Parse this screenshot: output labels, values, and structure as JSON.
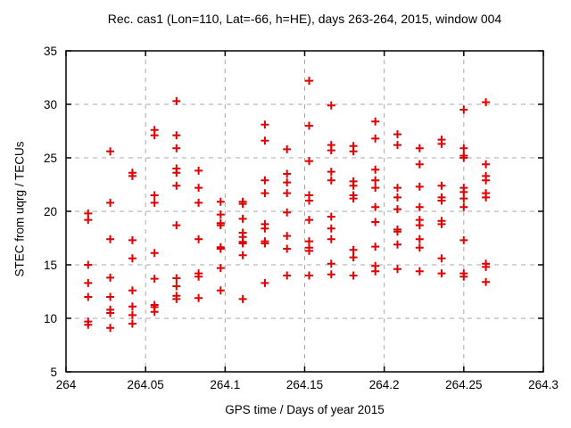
{
  "chart_data": {
    "type": "scatter",
    "title": "Rec. cas1 (Lon=110, Lat=-66, h=HE), days 263-264, 2015, window 004",
    "xlabel": "GPS time / Days of year 2015",
    "ylabel": "STEC from uqrg / TECUs",
    "xlim": [
      264,
      264.3
    ],
    "ylim": [
      5,
      35
    ],
    "xticks": {
      "values": [
        264,
        264.05,
        264.1,
        264.15,
        264.2,
        264.25,
        264.3
      ],
      "labels": [
        "264",
        "264.05",
        "264.1",
        "264.15",
        "264.2",
        "264.25",
        "264.3"
      ]
    },
    "yticks": {
      "values": [
        5,
        10,
        15,
        20,
        25,
        30,
        35
      ],
      "labels": [
        "5",
        "10",
        "15",
        "20",
        "25",
        "30",
        "35"
      ]
    },
    "grid": true,
    "grid_color": "#a8a8a8",
    "legend": "none",
    "marker": {
      "shape": "plus",
      "color": "#e00000",
      "size": 9
    },
    "series": [
      {
        "name": "STEC",
        "points": [
          [
            264.0139,
            19.8
          ],
          [
            264.0139,
            19.2
          ],
          [
            264.0139,
            15.0
          ],
          [
            264.0139,
            13.3
          ],
          [
            264.0139,
            12.0
          ],
          [
            264.0139,
            9.7
          ],
          [
            264.0139,
            9.4
          ],
          [
            264.0278,
            25.6
          ],
          [
            264.0278,
            20.8
          ],
          [
            264.0278,
            17.4
          ],
          [
            264.0278,
            13.8
          ],
          [
            264.0278,
            12.0
          ],
          [
            264.0278,
            10.8
          ],
          [
            264.0278,
            10.5
          ],
          [
            264.0278,
            9.1
          ],
          [
            264.0417,
            23.6
          ],
          [
            264.0417,
            23.3
          ],
          [
            264.0417,
            17.3
          ],
          [
            264.0417,
            15.6
          ],
          [
            264.0417,
            12.6
          ],
          [
            264.0417,
            11.1
          ],
          [
            264.0417,
            10.3
          ],
          [
            264.0417,
            9.5
          ],
          [
            264.0556,
            27.6
          ],
          [
            264.0556,
            27.1
          ],
          [
            264.0556,
            21.5
          ],
          [
            264.0556,
            20.8
          ],
          [
            264.0556,
            16.1
          ],
          [
            264.0556,
            13.7
          ],
          [
            264.0556,
            11.25
          ],
          [
            264.0556,
            11.05
          ],
          [
            264.0556,
            10.6
          ],
          [
            264.0694,
            30.3
          ],
          [
            264.0694,
            27.1
          ],
          [
            264.0694,
            25.9
          ],
          [
            264.0694,
            24.0
          ],
          [
            264.0694,
            23.6
          ],
          [
            264.0694,
            22.4
          ],
          [
            264.0694,
            18.7
          ],
          [
            264.0694,
            13.75
          ],
          [
            264.0694,
            13.0
          ],
          [
            264.0694,
            12.1
          ],
          [
            264.0694,
            11.8
          ],
          [
            264.0833,
            23.8
          ],
          [
            264.0833,
            22.2
          ],
          [
            264.0833,
            20.8
          ],
          [
            264.0833,
            17.4
          ],
          [
            264.0833,
            14.2
          ],
          [
            264.0833,
            13.9
          ],
          [
            264.0833,
            11.9
          ],
          [
            264.0972,
            20.9
          ],
          [
            264.0972,
            19.7
          ],
          [
            264.0972,
            18.9
          ],
          [
            264.0972,
            18.7
          ],
          [
            264.0972,
            16.65
          ],
          [
            264.0972,
            16.5
          ],
          [
            264.0972,
            14.7
          ],
          [
            264.0972,
            12.6
          ],
          [
            264.1111,
            20.9
          ],
          [
            264.1111,
            20.7
          ],
          [
            264.1111,
            19.3
          ],
          [
            264.1111,
            18.0
          ],
          [
            264.1111,
            17.6
          ],
          [
            264.1111,
            17.15
          ],
          [
            264.1111,
            17.0
          ],
          [
            264.1111,
            15.9
          ],
          [
            264.1111,
            11.8
          ],
          [
            264.125,
            28.1
          ],
          [
            264.125,
            26.6
          ],
          [
            264.125,
            22.9
          ],
          [
            264.125,
            21.7
          ],
          [
            264.125,
            18.8
          ],
          [
            264.125,
            18.4
          ],
          [
            264.125,
            17.2
          ],
          [
            264.125,
            17.0
          ],
          [
            264.125,
            13.3
          ],
          [
            264.1389,
            25.8
          ],
          [
            264.1389,
            23.5
          ],
          [
            264.1389,
            22.7
          ],
          [
            264.1389,
            21.7
          ],
          [
            264.1389,
            19.9
          ],
          [
            264.1389,
            17.7
          ],
          [
            264.1389,
            16.5
          ],
          [
            264.1389,
            14.0
          ],
          [
            264.1528,
            32.2
          ],
          [
            264.1528,
            28.0
          ],
          [
            264.1528,
            24.7
          ],
          [
            264.1528,
            21.5
          ],
          [
            264.1528,
            21.0
          ],
          [
            264.1528,
            19.2
          ],
          [
            264.1528,
            17.2
          ],
          [
            264.1528,
            16.6
          ],
          [
            264.1528,
            16.3
          ],
          [
            264.1528,
            14.0
          ],
          [
            264.1667,
            29.9
          ],
          [
            264.1667,
            26.2
          ],
          [
            264.1667,
            25.7
          ],
          [
            264.1667,
            23.7
          ],
          [
            264.1667,
            22.9
          ],
          [
            264.1667,
            19.5
          ],
          [
            264.1667,
            18.4
          ],
          [
            264.1667,
            17.4
          ],
          [
            264.1667,
            15.1
          ],
          [
            264.1667,
            14.1
          ],
          [
            264.1806,
            26.1
          ],
          [
            264.1806,
            25.6
          ],
          [
            264.1806,
            22.8
          ],
          [
            264.1806,
            22.4
          ],
          [
            264.1806,
            21.5
          ],
          [
            264.1806,
            21.2
          ],
          [
            264.1806,
            16.4
          ],
          [
            264.1806,
            15.7
          ],
          [
            264.1806,
            14.0
          ],
          [
            264.1944,
            28.4
          ],
          [
            264.1944,
            26.8
          ],
          [
            264.1944,
            23.9
          ],
          [
            264.1944,
            22.9
          ],
          [
            264.1944,
            22.2
          ],
          [
            264.1944,
            20.4
          ],
          [
            264.1944,
            19.0
          ],
          [
            264.1944,
            16.7
          ],
          [
            264.1944,
            14.9
          ],
          [
            264.1944,
            14.4
          ],
          [
            264.2083,
            27.2
          ],
          [
            264.2083,
            26.2
          ],
          [
            264.2083,
            22.2
          ],
          [
            264.2083,
            21.3
          ],
          [
            264.2083,
            20.2
          ],
          [
            264.2083,
            18.3
          ],
          [
            264.2083,
            18.1
          ],
          [
            264.2083,
            16.9
          ],
          [
            264.2083,
            14.6
          ],
          [
            264.2222,
            25.9
          ],
          [
            264.2222,
            24.4
          ],
          [
            264.2222,
            22.3
          ],
          [
            264.2222,
            20.4
          ],
          [
            264.2222,
            19.2
          ],
          [
            264.2222,
            18.7
          ],
          [
            264.2222,
            17.4
          ],
          [
            264.2222,
            16.6
          ],
          [
            264.2222,
            14.4
          ],
          [
            264.2361,
            26.7
          ],
          [
            264.2361,
            26.3
          ],
          [
            264.2361,
            22.4
          ],
          [
            264.2361,
            21.3
          ],
          [
            264.2361,
            21.0
          ],
          [
            264.2361,
            19.1
          ],
          [
            264.2361,
            18.8
          ],
          [
            264.2361,
            15.6
          ],
          [
            264.2361,
            14.2
          ],
          [
            264.25,
            29.5
          ],
          [
            264.25,
            25.9
          ],
          [
            264.25,
            25.2
          ],
          [
            264.25,
            25.0
          ],
          [
            264.25,
            22.2
          ],
          [
            264.25,
            21.8
          ],
          [
            264.25,
            21.2
          ],
          [
            264.25,
            20.4
          ],
          [
            264.25,
            17.3
          ],
          [
            264.25,
            14.2
          ],
          [
            264.25,
            13.9
          ],
          [
            264.2639,
            30.2
          ],
          [
            264.2639,
            24.4
          ],
          [
            264.2639,
            23.3
          ],
          [
            264.2639,
            22.9
          ],
          [
            264.2639,
            21.7
          ],
          [
            264.2639,
            21.3
          ],
          [
            264.2639,
            15.1
          ],
          [
            264.2639,
            14.8
          ],
          [
            264.2639,
            13.4
          ]
        ]
      }
    ]
  }
}
